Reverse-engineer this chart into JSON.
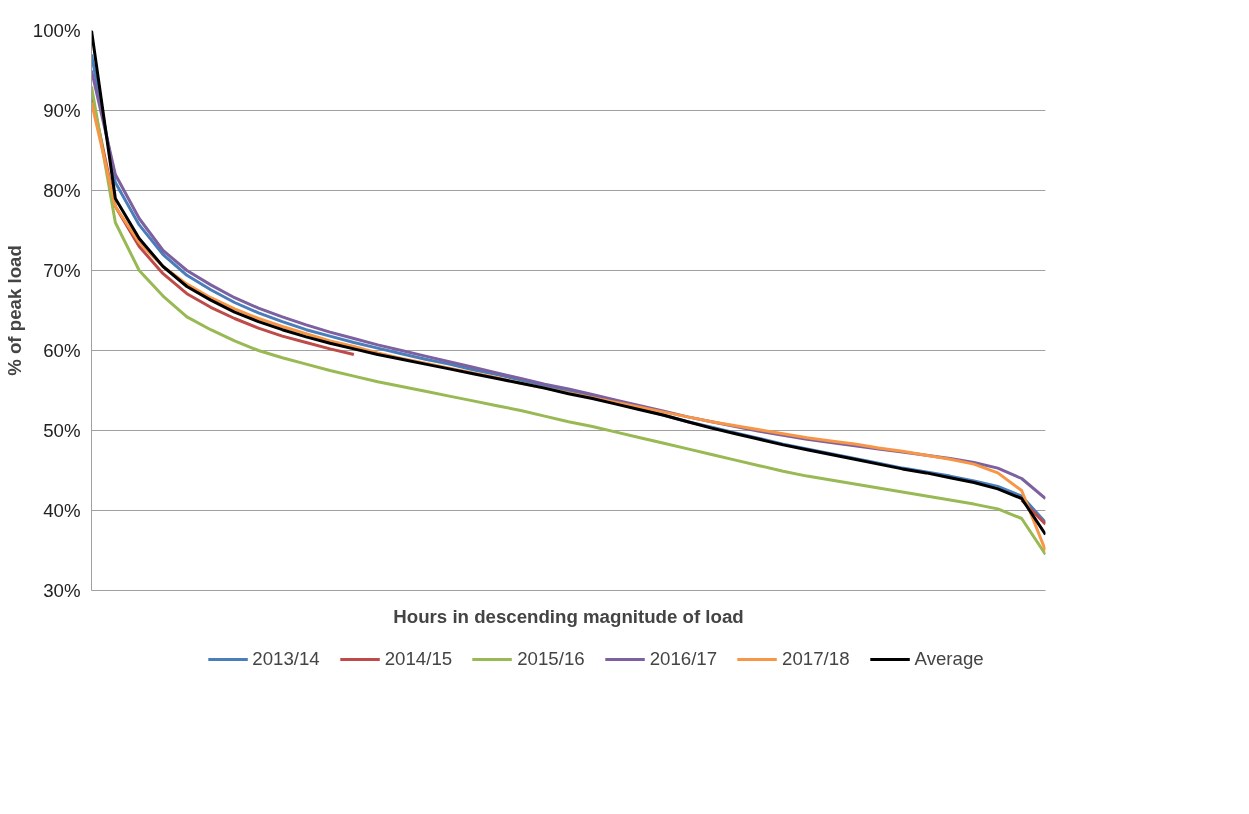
{
  "chart_data": {
    "type": "line",
    "xlabel": "Hours in descending magnitude of load",
    "ylabel": "% of peak load",
    "categories": [
      null,
      null,
      null,
      null,
      null,
      null,
      null,
      null,
      null,
      null,
      null,
      null,
      null,
      null,
      null,
      null,
      null,
      null,
      null,
      null,
      null,
      null,
      null,
      null,
      null,
      null,
      null,
      null,
      null,
      null,
      null,
      null,
      null,
      null,
      null,
      null,
      null,
      null,
      null,
      null,
      null
    ],
    "ylim": [
      30,
      100
    ],
    "yticks": [
      {
        "value": 30,
        "label": "30%"
      },
      {
        "value": 40,
        "label": "40%"
      },
      {
        "value": 50,
        "label": "50%"
      },
      {
        "value": 60,
        "label": "60%"
      },
      {
        "value": 70,
        "label": "70%"
      },
      {
        "value": 80,
        "label": "80%"
      },
      {
        "value": 90,
        "label": "90%"
      },
      {
        "value": 100,
        "label": "100%"
      }
    ],
    "grid": "y",
    "legend": "bottom",
    "tick_labels": "y",
    "marker": "none",
    "line_style": "solid",
    "series": [
      {
        "name": "2013/14",
        "color": "#4a7ebb",
        "values": [
          97,
          81,
          75.7,
          72,
          69.4,
          67.6,
          66,
          64.7,
          63.6,
          62.6,
          61.8,
          61.0,
          60.3,
          59.6,
          58.9,
          58.3,
          57.6,
          57.0,
          56.3,
          55.6,
          54.9,
          54.2,
          53.5,
          52.7,
          51.9,
          51.1,
          50.4,
          49.7,
          49.0,
          48.3,
          47.7,
          47.1,
          46.5,
          45.9,
          45.3,
          44.8,
          44.3,
          43.7,
          43.0,
          41.8,
          38.5
        ]
      },
      {
        "name": "2014/15",
        "color": "#be4b48",
        "values": [
          92,
          78,
          73,
          69.6,
          67.1,
          65.4,
          64.0,
          62.8,
          61.8,
          61.0,
          60.2,
          59.5,
          null,
          null,
          null,
          null,
          null,
          null,
          null,
          null,
          null,
          null,
          null,
          null,
          null,
          null,
          null,
          null,
          null,
          null,
          null,
          null,
          null,
          null,
          null,
          null,
          null,
          null,
          null,
          41.3,
          38.3
        ]
      },
      {
        "name": "2015/16",
        "color": "#98b954",
        "values": [
          93,
          76,
          70,
          66.8,
          64.2,
          62.6,
          61.2,
          60.0,
          59.1,
          58.3,
          57.5,
          56.8,
          56.1,
          55.5,
          54.9,
          54.3,
          53.7,
          53.1,
          52.5,
          51.8,
          51.1,
          50.5,
          49.8,
          49.1,
          48.4,
          47.7,
          47.0,
          46.3,
          45.6,
          44.9,
          44.3,
          43.8,
          43.3,
          42.8,
          42.3,
          41.8,
          41.3,
          40.8,
          40.2,
          39.0,
          34.5
        ]
      },
      {
        "name": "2016/17",
        "color": "#7d60a0",
        "values": [
          95,
          82,
          76.5,
          72.5,
          70,
          68.2,
          66.6,
          65.3,
          64.2,
          63.2,
          62.3,
          61.5,
          60.7,
          60.0,
          59.3,
          58.6,
          57.9,
          57.2,
          56.5,
          55.8,
          55.2,
          54.5,
          53.8,
          53.1,
          52.4,
          51.7,
          51.1,
          50.5,
          49.9,
          49.4,
          48.9,
          48.5,
          48.1,
          47.7,
          47.3,
          46.9,
          46.5,
          46.0,
          45.3,
          44.0,
          41.5
        ]
      },
      {
        "name": "2017/18",
        "color": "#f79646",
        "values": [
          91,
          78,
          73.5,
          70.5,
          68.3,
          66.6,
          65.2,
          64.0,
          63.0,
          62.1,
          61.2,
          60.5,
          59.7,
          59.0,
          58.4,
          57.8,
          57.2,
          56.6,
          55.9,
          55.3,
          54.7,
          54.1,
          53.5,
          52.9,
          52.3,
          51.7,
          51.1,
          50.6,
          50.1,
          49.6,
          49.1,
          48.7,
          48.3,
          47.8,
          47.4,
          46.9,
          46.4,
          45.8,
          44.7,
          42.5,
          35
        ]
      },
      {
        "name": "Average",
        "color": "#000000",
        "values": [
          100,
          79,
          74,
          70.5,
          68,
          66.3,
          64.8,
          63.6,
          62.6,
          61.7,
          60.9,
          60.2,
          59.5,
          58.9,
          58.3,
          57.7,
          57.1,
          56.5,
          55.9,
          55.3,
          54.6,
          54.0,
          53.3,
          52.6,
          51.9,
          51.1,
          50.3,
          49.6,
          48.9,
          48.2,
          47.6,
          47.0,
          46.4,
          45.8,
          45.2,
          44.7,
          44.1,
          43.5,
          42.7,
          41.5,
          37
        ]
      }
    ]
  }
}
